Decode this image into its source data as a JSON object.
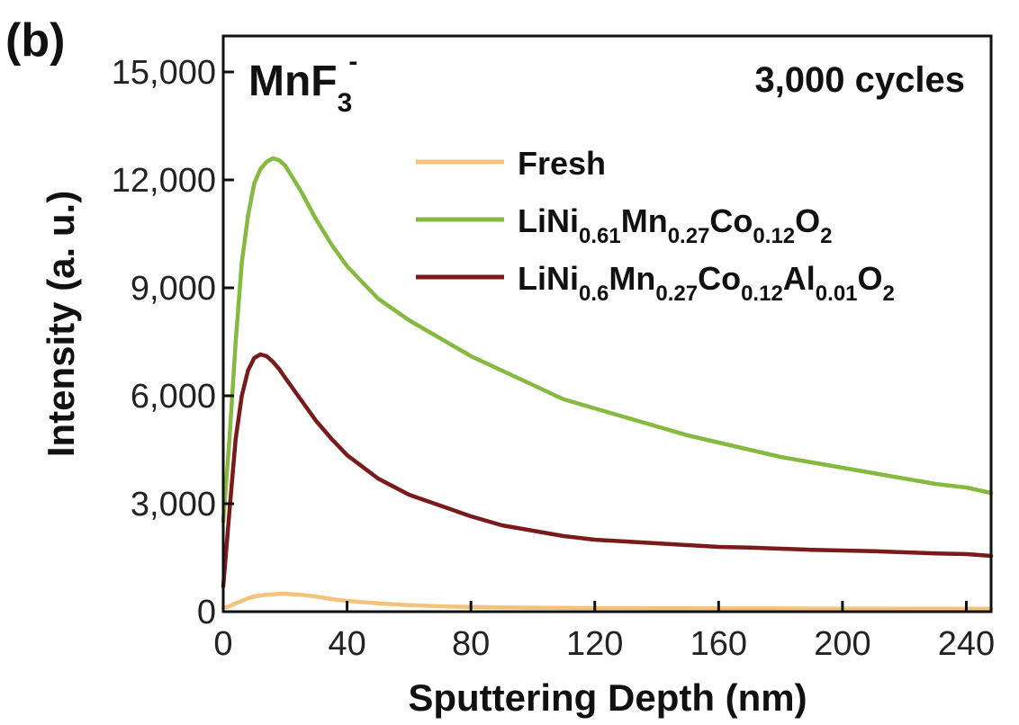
{
  "chart_data": {
    "type": "line",
    "panel_label": "(b)",
    "species": {
      "base": "MnF",
      "sub": "3",
      "sup": "-"
    },
    "condition": "3,000 cycles",
    "xlabel": "Sputtering Depth (nm)",
    "ylabel": "Intensity (a. u.)",
    "xlim": [
      0,
      248
    ],
    "ylim": [
      0,
      16000
    ],
    "xticks": [
      0,
      40,
      80,
      120,
      160,
      200,
      240
    ],
    "xtick_labels": [
      "0",
      "40",
      "80",
      "120",
      "160",
      "200",
      "240"
    ],
    "yticks": [
      0,
      3000,
      6000,
      9000,
      12000,
      15000
    ],
    "ytick_labels": [
      "0",
      "3,000",
      "6,000",
      "9,000",
      "12,000",
      "15,000"
    ],
    "grid": false,
    "legend_position": "top-right",
    "x": [
      0,
      2,
      4,
      6,
      8,
      10,
      12,
      14,
      16,
      18,
      20,
      25,
      30,
      35,
      40,
      50,
      60,
      70,
      80,
      90,
      100,
      110,
      120,
      130,
      140,
      150,
      160,
      170,
      180,
      190,
      200,
      210,
      220,
      230,
      240,
      248
    ],
    "series": [
      {
        "legend": [
          {
            "t": "Fresh",
            "s": false
          }
        ],
        "color": "#F5C27C",
        "values": [
          100,
          150,
          230,
          300,
          370,
          420,
          450,
          470,
          480,
          490,
          500,
          470,
          420,
          350,
          300,
          230,
          180,
          150,
          130,
          120,
          110,
          105,
          100,
          100,
          95,
          95,
          90,
          90,
          90,
          85,
          85,
          85,
          80,
          80,
          80,
          80
        ]
      },
      {
        "legend": [
          {
            "t": "LiNi",
            "s": false
          },
          {
            "t": "0.61",
            "s": true
          },
          {
            "t": "Mn",
            "s": false
          },
          {
            "t": "0.27",
            "s": true
          },
          {
            "t": "Co",
            "s": false
          },
          {
            "t": "0.12",
            "s": true
          },
          {
            "t": "O",
            "s": false
          },
          {
            "t": "2",
            "s": true
          }
        ],
        "color": "#86B93F",
        "values": [
          2500,
          4800,
          7500,
          9700,
          11000,
          11900,
          12300,
          12500,
          12600,
          12550,
          12400,
          11700,
          10900,
          10200,
          9600,
          8700,
          8100,
          7600,
          7100,
          6700,
          6300,
          5900,
          5650,
          5400,
          5150,
          4900,
          4700,
          4500,
          4300,
          4150,
          4000,
          3850,
          3700,
          3550,
          3450,
          3300
        ]
      },
      {
        "legend": [
          {
            "t": "LiNi",
            "s": false
          },
          {
            "t": "0.6",
            "s": true
          },
          {
            "t": "Mn",
            "s": false
          },
          {
            "t": "0.27",
            "s": true
          },
          {
            "t": "Co",
            "s": false
          },
          {
            "t": "0.12",
            "s": true
          },
          {
            "t": "Al",
            "s": false
          },
          {
            "t": "0.01",
            "s": true
          },
          {
            "t": "O",
            "s": false
          },
          {
            "t": "2",
            "s": true
          }
        ],
        "color": "#7A1A1A",
        "values": [
          700,
          2800,
          4800,
          6000,
          6700,
          7050,
          7150,
          7100,
          6950,
          6750,
          6500,
          5900,
          5300,
          4800,
          4350,
          3700,
          3250,
          2950,
          2650,
          2400,
          2250,
          2100,
          2000,
          1950,
          1900,
          1850,
          1800,
          1780,
          1750,
          1720,
          1700,
          1680,
          1650,
          1620,
          1600,
          1550
        ]
      }
    ]
  }
}
